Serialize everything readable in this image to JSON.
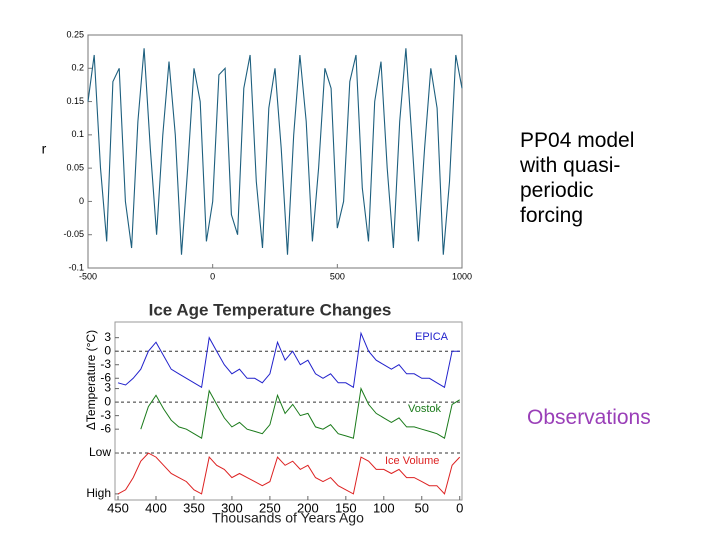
{
  "chart_data": [
    {
      "type": "line",
      "ylabel": "r",
      "xlim": [
        -500,
        1000
      ],
      "ylim": [
        -0.1,
        0.25
      ],
      "xticks": [
        -500,
        0,
        500,
        1000
      ],
      "yticks": [
        -0.1,
        -0.05,
        0,
        0.05,
        0.1,
        0.15,
        0.2,
        0.25
      ],
      "x": [
        -500,
        -475,
        -450,
        -425,
        -400,
        -375,
        -350,
        -325,
        -300,
        -275,
        -250,
        -225,
        -200,
        -175,
        -150,
        -125,
        -100,
        -75,
        -50,
        -25,
        0,
        25,
        50,
        75,
        100,
        125,
        150,
        175,
        200,
        225,
        250,
        275,
        300,
        325,
        350,
        375,
        400,
        425,
        450,
        475,
        500,
        525,
        550,
        575,
        600,
        625,
        650,
        675,
        700,
        725,
        750,
        775,
        800,
        825,
        850,
        875,
        900,
        925,
        950,
        975,
        1000
      ],
      "series": [
        {
          "name": "r",
          "color": "#1d5f7e",
          "values": [
            0.15,
            0.22,
            0.05,
            -0.06,
            0.18,
            0.2,
            0.0,
            -0.07,
            0.12,
            0.23,
            0.08,
            -0.05,
            0.1,
            0.21,
            0.1,
            -0.08,
            0.05,
            0.2,
            0.15,
            -0.06,
            0.0,
            0.19,
            0.2,
            -0.02,
            -0.05,
            0.17,
            0.22,
            0.03,
            -0.07,
            0.14,
            0.2,
            0.08,
            -0.08,
            0.1,
            0.22,
            0.12,
            -0.06,
            0.05,
            0.2,
            0.17,
            -0.04,
            0.0,
            0.18,
            0.22,
            0.02,
            -0.06,
            0.15,
            0.21,
            0.05,
            -0.07,
            0.12,
            0.23,
            0.09,
            -0.06,
            0.08,
            0.2,
            0.14,
            -0.08,
            0.03,
            0.22,
            0.17
          ]
        }
      ]
    },
    {
      "type": "stacked-lines",
      "title": "Ice Age Temperature Changes",
      "xlabel": "Thousands of Years Ago",
      "ylabel": "ΔTemperature (°C)",
      "xlim": [
        454,
        -3
      ],
      "xticks": [
        450,
        400,
        350,
        300,
        250,
        200,
        150,
        100,
        50,
        0
      ],
      "x": [
        450,
        440,
        430,
        420,
        410,
        400,
        390,
        380,
        370,
        360,
        350,
        340,
        330,
        320,
        310,
        300,
        290,
        280,
        270,
        260,
        250,
        240,
        230,
        220,
        210,
        200,
        190,
        180,
        170,
        160,
        150,
        140,
        130,
        120,
        110,
        100,
        90,
        80,
        70,
        60,
        50,
        40,
        30,
        20,
        10,
        0
      ],
      "series": [
        {
          "name": "EPICA",
          "color": "#2222cc",
          "ylim": [
            -8.6,
            4.7
          ],
          "yticks": [
            3,
            0,
            -3,
            -6
          ],
          "values": [
            -7,
            -7.5,
            -6,
            -4,
            0,
            2,
            -1,
            -4,
            -5,
            -6,
            -7,
            -8,
            3,
            0,
            -3,
            -5,
            -4,
            -6,
            -6,
            -7,
            -5,
            2,
            -2,
            0,
            -3,
            -2,
            -5,
            -6,
            -5,
            -7,
            -7,
            -8,
            4,
            0,
            -2,
            -3,
            -4,
            -3,
            -5,
            -5,
            -6,
            -6,
            -7,
            -8,
            0,
            0
          ]
        },
        {
          "name": "Vostok",
          "color": "#1a7a1a",
          "ylim": [
            -8.4,
            4.9
          ],
          "yticks": [
            3,
            0,
            -3,
            -6
          ],
          "values": [
            null,
            null,
            null,
            -6,
            -1,
            1.5,
            -1.5,
            -4,
            -5.5,
            -6,
            -7,
            -8,
            2.5,
            -0.5,
            -3.5,
            -5.5,
            -4.5,
            -6,
            -6.5,
            -7,
            -5,
            1.5,
            -2.5,
            -0.5,
            -3,
            -2.5,
            -5.5,
            -6,
            -5,
            -7,
            -7.5,
            -8,
            3,
            -0.5,
            -2.5,
            -3.5,
            -4.5,
            -3.5,
            -5.5,
            -5.5,
            -6,
            -6.5,
            -7,
            -8,
            -0.5,
            0.5
          ]
        },
        {
          "name": "Ice Volume",
          "color": "#dd2222",
          "ylim": [
            1.15,
            -0.32
          ],
          "yticks": [
            {
              "value": 0,
              "label": "Low"
            },
            {
              "value": 1,
              "label": "High"
            }
          ],
          "values": [
            1,
            0.9,
            0.6,
            0.2,
            0,
            0.1,
            0.3,
            0.5,
            0.6,
            0.7,
            0.9,
            1,
            0.1,
            0.3,
            0.4,
            0.6,
            0.5,
            0.6,
            0.7,
            0.8,
            0.7,
            0.1,
            0.3,
            0.2,
            0.4,
            0.3,
            0.6,
            0.7,
            0.6,
            0.8,
            0.9,
            1,
            0.1,
            0.2,
            0.4,
            0.4,
            0.5,
            0.4,
            0.6,
            0.6,
            0.7,
            0.8,
            0.8,
            1,
            0.3,
            0.1
          ]
        }
      ]
    }
  ],
  "captions": {
    "model": [
      "PP04 model",
      "with quasi-",
      "periodic",
      "forcing"
    ],
    "observations": "Observations"
  }
}
